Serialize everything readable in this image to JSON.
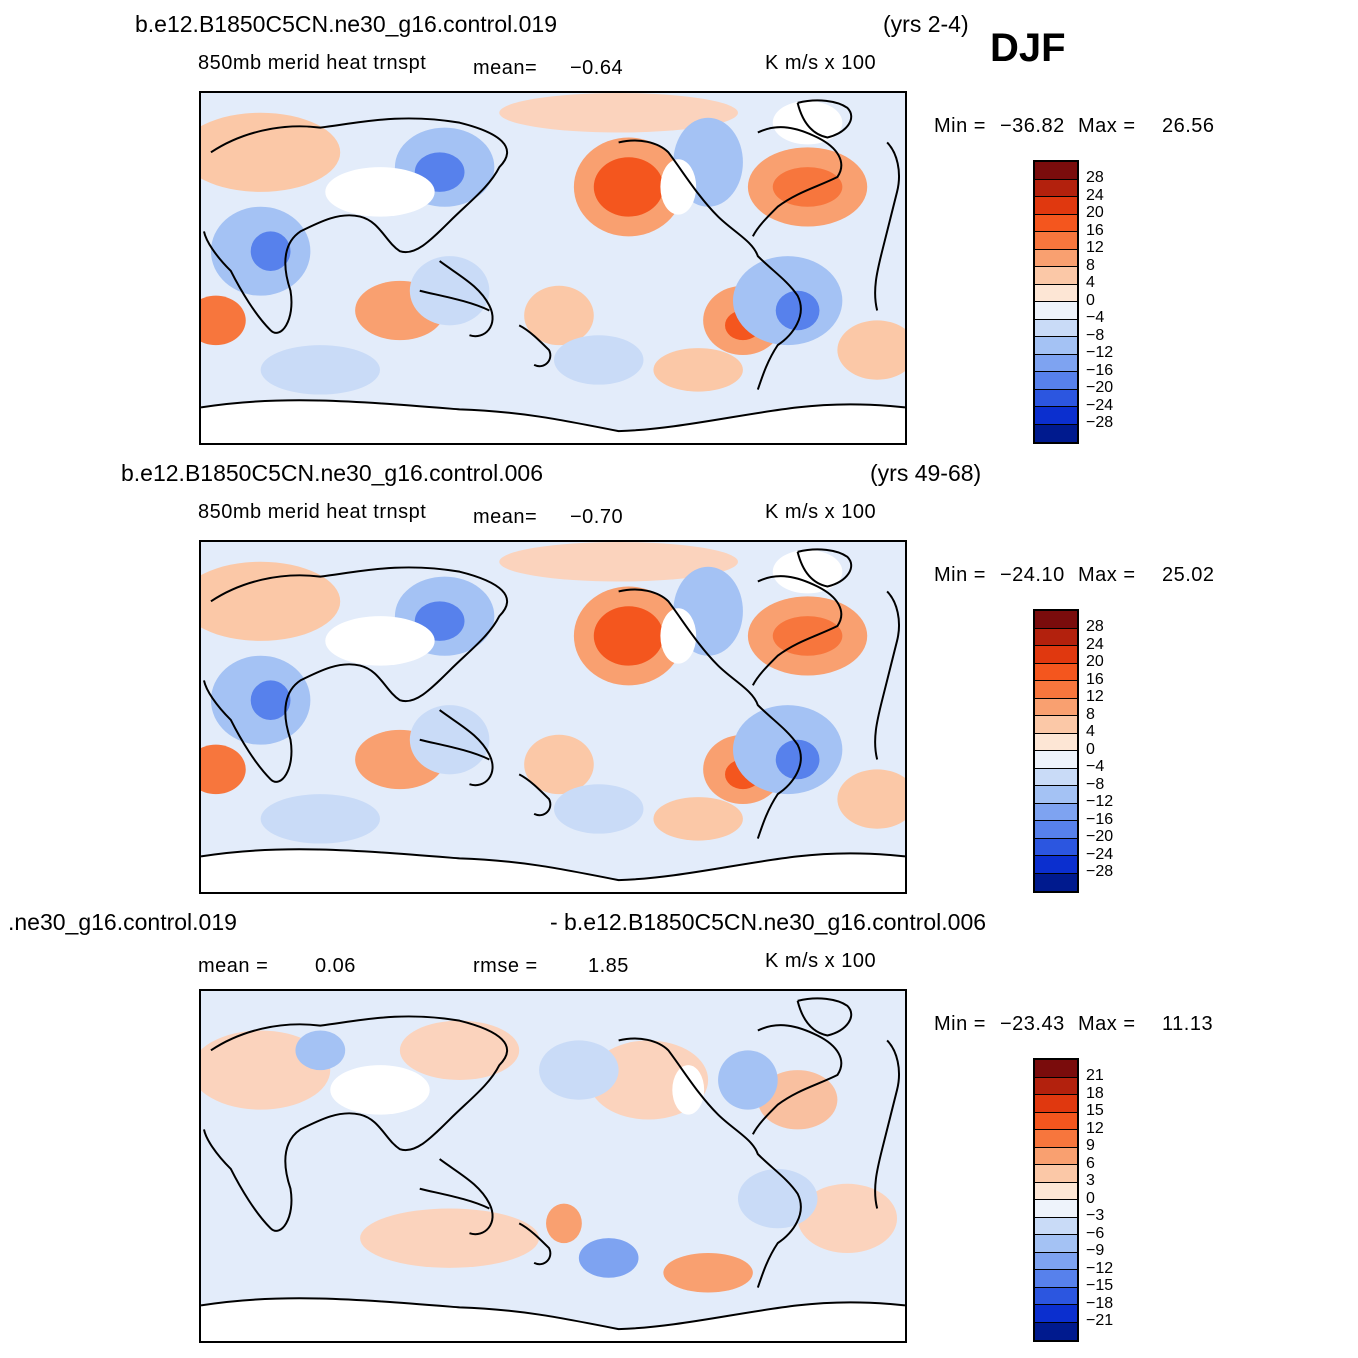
{
  "season": "DJF",
  "panels": [
    {
      "case_left": "b.e12.B1850C5CN.ne30_g16.control.019",
      "case_right": "(yrs 2-4)",
      "variable": "850mb  merid  heat  trnspt",
      "stat1_label": "mean=",
      "stat1_value": "−0.64",
      "stat2_label": "",
      "stat2_value": "",
      "units": "K  m/s  x  100",
      "min_label": "Min  =",
      "min_value": "−36.82",
      "max_label": "Max  =",
      "max_value": "26.56",
      "levels": [
        "28",
        "24",
        "20",
        "16",
        "12",
        "8",
        "4",
        "0",
        "−4",
        "−8",
        "−12",
        "−16",
        "−20",
        "−24",
        "−28"
      ]
    },
    {
      "case_left": "b.e12.B1850C5CN.ne30_g16.control.006",
      "case_right": "(yrs 49-68)",
      "variable": "850mb  merid  heat  trnspt",
      "stat1_label": "mean=",
      "stat1_value": "−0.70",
      "stat2_label": "",
      "stat2_value": "",
      "units": "K  m/s  x  100",
      "min_label": "Min  =",
      "min_value": "−24.10",
      "max_label": "Max  =",
      "max_value": "25.02",
      "levels": [
        "28",
        "24",
        "20",
        "16",
        "12",
        "8",
        "4",
        "0",
        "−4",
        "−8",
        "−12",
        "−16",
        "−20",
        "−24",
        "−28"
      ]
    },
    {
      "case_left": ".ne30_g16.control.019",
      "case_right": "- b.e12.B1850C5CN.ne30_g16.control.006",
      "variable": "",
      "stat1_label": "mean  =",
      "stat1_value": "0.06",
      "stat2_label": "rmse  =",
      "stat2_value": "1.85",
      "units": "K  m/s  x  100",
      "min_label": "Min  =",
      "min_value": "−23.43",
      "max_label": "Max  =",
      "max_value": "11.13",
      "levels": [
        "21",
        "18",
        "15",
        "12",
        "9",
        "6",
        "3",
        "0",
        "−3",
        "−6",
        "−9",
        "−12",
        "−15",
        "−18",
        "−21"
      ]
    }
  ],
  "colorbar_colors": [
    "#7a0c0c",
    "#b3210d",
    "#e0380f",
    "#f4561e",
    "#f7763d",
    "#f9a070",
    "#fbc8a7",
    "#fde6d5",
    "#eef3fb",
    "#c9dbf7",
    "#a4c2f4",
    "#7ea3f1",
    "#5781ec",
    "#2c56e0",
    "#0b2fcf",
    "#001a8e"
  ]
}
